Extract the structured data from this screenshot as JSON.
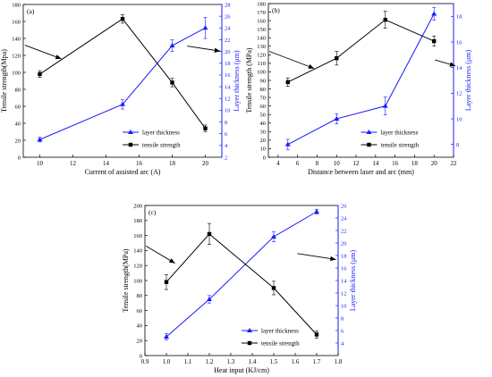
{
  "colors": {
    "strength": "#000000",
    "thickness": "#1a1aff",
    "axis": "#000000"
  },
  "chart_data": [
    {
      "panel_label": "(a)",
      "type": "line",
      "xlabel": "Current of assisted arc (A)",
      "ylabel_left": "Tensile strength(Mpa)",
      "ylabel_right": "Layer thickness (μm)",
      "xlim": [
        9,
        21
      ],
      "xticks": [
        10,
        12,
        14,
        16,
        18,
        20
      ],
      "ylim_left": [
        0,
        180
      ],
      "yticks_left": [
        0,
        20,
        40,
        60,
        80,
        100,
        120,
        140,
        160,
        180
      ],
      "ylim_right": [
        2,
        28
      ],
      "yticks_right": [
        2,
        4,
        6,
        8,
        10,
        12,
        14,
        16,
        18,
        20,
        22,
        24,
        26,
        28
      ],
      "legend_position": "bottom-right",
      "series": [
        {
          "name": "layer thickness",
          "axis": "right",
          "marker": "triangle",
          "x": [
            10,
            15,
            18,
            20
          ],
          "y": [
            5,
            11,
            21,
            24
          ],
          "err": [
            0.4,
            0.8,
            1.0,
            1.8
          ]
        },
        {
          "name": "tensile strength",
          "axis": "left",
          "marker": "square",
          "x": [
            10,
            15,
            18,
            20
          ],
          "y": [
            98,
            163,
            88,
            34
          ],
          "err": [
            4,
            5,
            5,
            4
          ]
        }
      ],
      "arrows": [
        {
          "from": [
            9.1,
            132
          ],
          "to": [
            11.3,
            116
          ]
        },
        {
          "from": [
            18.9,
            131
          ],
          "to": [
            20.9,
            125
          ]
        }
      ]
    },
    {
      "panel_label": "(b)",
      "type": "line",
      "xlabel": "Distance between laser and arc (mm)",
      "ylabel_left": "Tensile strength (MPa)",
      "ylabel_right": "Layer thickness (μm)",
      "xlim": [
        3,
        22
      ],
      "xticks": [
        4,
        6,
        8,
        10,
        12,
        14,
        16,
        18,
        20,
        22
      ],
      "ylim_left": [
        0,
        180
      ],
      "yticks_left": [
        0,
        10,
        20,
        30,
        40,
        50,
        60,
        70,
        80,
        90,
        100,
        110,
        120,
        130,
        140,
        150,
        160,
        170,
        180
      ],
      "ylim_right": [
        7,
        19
      ],
      "yticks_right": [
        8,
        10,
        12,
        14,
        16,
        18
      ],
      "legend_position": "bottom-right",
      "series": [
        {
          "name": "layer thickness",
          "axis": "right",
          "marker": "triangle",
          "x": [
            5,
            10,
            15,
            20
          ],
          "y": [
            8,
            10,
            11,
            18.2
          ],
          "err": [
            0.4,
            0.4,
            0.7,
            0.5
          ]
        },
        {
          "name": "tensile strength",
          "axis": "left",
          "marker": "square",
          "x": [
            5,
            10,
            15,
            20
          ],
          "y": [
            88,
            116,
            161,
            136
          ],
          "err": [
            5,
            8,
            10,
            6
          ]
        }
      ],
      "arrows": [
        {
          "from": [
            3.1,
            124
          ],
          "to": [
            7.7,
            104
          ]
        },
        {
          "from": [
            20.1,
            114
          ],
          "to": [
            22.2,
            107
          ]
        }
      ]
    },
    {
      "panel_label": "(c)",
      "type": "line",
      "xlabel": "Heat input (KJ/cm)",
      "ylabel_left": "Tensile strength(MPa)",
      "ylabel_right": "Layer thickness (μm)",
      "xlim": [
        0.9,
        1.8
      ],
      "xticks": [
        0.9,
        1.0,
        1.1,
        1.2,
        1.3,
        1.4,
        1.5,
        1.6,
        1.7,
        1.8
      ],
      "ylim_left": [
        0,
        200
      ],
      "yticks_left": [
        0,
        20,
        40,
        60,
        80,
        100,
        120,
        140,
        160,
        180,
        200
      ],
      "ylim_right": [
        2,
        26
      ],
      "yticks_right": [
        4,
        6,
        8,
        10,
        12,
        14,
        16,
        18,
        20,
        22,
        24,
        26
      ],
      "legend_position": "bottom-right",
      "series": [
        {
          "name": "layer thickness",
          "axis": "right",
          "marker": "triangle",
          "x": [
            1.0,
            1.2,
            1.5,
            1.7
          ],
          "y": [
            5,
            11,
            21,
            25
          ],
          "err": [
            0.5,
            0.6,
            0.8,
            0.4
          ]
        },
        {
          "name": "tensile strength",
          "axis": "left",
          "marker": "square",
          "x": [
            1.0,
            1.2,
            1.5,
            1.7
          ],
          "y": [
            98,
            162,
            90,
            28
          ],
          "err": [
            10,
            14,
            9,
            5
          ]
        }
      ],
      "arrows": [
        {
          "from": [
            0.905,
            146
          ],
          "to": [
            1.04,
            123
          ]
        },
        {
          "from": [
            1.61,
            136
          ],
          "to": [
            1.79,
            128
          ]
        }
      ]
    }
  ]
}
